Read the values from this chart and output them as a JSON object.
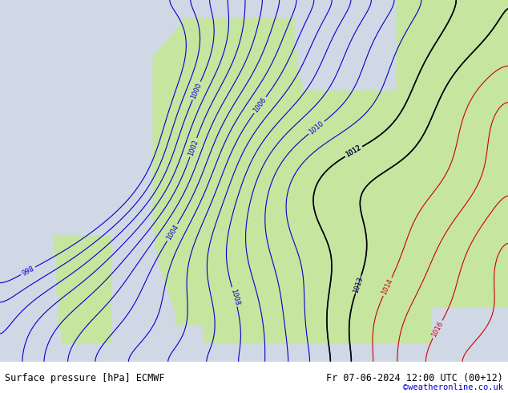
{
  "title_left": "Surface pressure [hPa] ECMWF",
  "title_right": "Fr 07-06-2024 12:00 UTC (00+12)",
  "credit": "©weatheronline.co.uk",
  "bg_color_ocean": "#d0d8e8",
  "bg_color_land": "#c8e6a0",
  "bg_color_gray": "#c8c8c8",
  "contour_color_blue": "#0000cc",
  "contour_color_red": "#cc0000",
  "contour_color_black": "#000000",
  "pressure_min": 1000,
  "pressure_max": 1020,
  "footer_bg": "#e8e8f0",
  "footer_text_color": "#000000",
  "credit_color": "#0000cc",
  "figsize": [
    6.34,
    4.9
  ],
  "dpi": 100
}
